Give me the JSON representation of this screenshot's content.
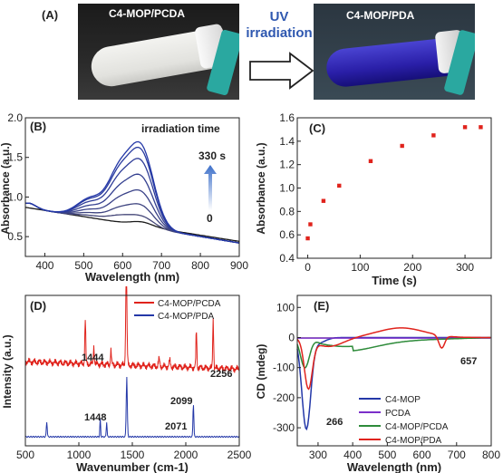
{
  "panel_a": {
    "label": "(A)",
    "left_photo_label": "C4-MOP/PCDA",
    "right_photo_label": "C4-MOP/PDA",
    "arrow_text_line1": "UV",
    "arrow_text_line2": "irradiation",
    "colors": {
      "arrow_text": "#2f58b0",
      "left_liquid": "#e9e9e6",
      "right_liquid": "#2a1fa8",
      "clip": "#2aa8a0"
    }
  },
  "chart_data": [
    {
      "id": "B",
      "panel_label": "(B)",
      "type": "line",
      "xlabel": "Wavelength (nm)",
      "ylabel": "Absorbance (a.u.)",
      "xlim": [
        350,
        900
      ],
      "ylim": [
        0.25,
        2.0
      ],
      "xticks": [
        400,
        500,
        600,
        700,
        800,
        900
      ],
      "yticks": [
        0.5,
        1.0,
        1.5,
        2.0
      ],
      "ytick_labels": [
        "0.5",
        "1.0",
        "1.5",
        "2.0"
      ],
      "annotation": "irradiation time",
      "arrow_top_label": "330 s",
      "arrow_bottom_label": "0",
      "colors": {
        "first": "#1a1a1a",
        "last": "#2438a8",
        "arrow": "#3c6fc9"
      },
      "peak_heights_at_650": [
        0.64,
        0.76,
        0.88,
        1.03,
        1.2,
        1.37,
        1.49,
        1.55
      ]
    },
    {
      "id": "C",
      "panel_label": "(C)",
      "type": "scatter",
      "xlabel": "Time (s)",
      "ylabel": "Absorbance (a.u.)",
      "xlim": [
        -20,
        350
      ],
      "ylim": [
        0.4,
        1.6
      ],
      "xticks": [
        0,
        100,
        200,
        300
      ],
      "yticks": [
        0.4,
        0.6,
        0.8,
        1.0,
        1.2,
        1.4,
        1.6
      ],
      "ytick_labels": [
        "0.4",
        "0.6",
        "0.8",
        "1.0",
        "1.2",
        "1.4",
        "1.6"
      ],
      "color": "#e0231c",
      "x": [
        0,
        5,
        30,
        60,
        120,
        180,
        240,
        300,
        330
      ],
      "y": [
        0.57,
        0.69,
        0.89,
        1.02,
        1.23,
        1.36,
        1.45,
        1.52,
        1.52
      ]
    },
    {
      "id": "D",
      "panel_label": "(D)",
      "type": "line",
      "xlabel": "Wavenumber (cm-1)",
      "ylabel": "Intensity (a.u.)",
      "xlim": [
        500,
        2500
      ],
      "xticks": [
        500,
        1000,
        1500,
        2000,
        2500
      ],
      "series": [
        {
          "name": "C4-MOP/PCDA",
          "color": "#e0231c"
        },
        {
          "name": "C4-MOP/PDA",
          "color": "#2438a8"
        }
      ],
      "annotations": [
        "1444",
        "1448",
        "2099",
        "2071",
        "2256"
      ]
    },
    {
      "id": "E",
      "panel_label": "(E)",
      "type": "line",
      "xlabel": "Wavelength (nm)",
      "ylabel": "CD (mdeg)",
      "xlim": [
        240,
        800
      ],
      "ylim": [
        -360,
        140
      ],
      "xticks": [
        300,
        400,
        500,
        600,
        700,
        800
      ],
      "yticks": [
        -300,
        -200,
        -100,
        0,
        100
      ],
      "series": [
        {
          "name": "C4-MOP",
          "color": "#2438a8"
        },
        {
          "name": "PCDA",
          "color": "#7b2fc9"
        },
        {
          "name": "C4-MOP/PCDA",
          "color": "#2e8b3a"
        },
        {
          "name": "C4-MOP/PDA",
          "color": "#e0231c"
        }
      ],
      "annotations": [
        "657",
        "266"
      ]
    }
  ]
}
